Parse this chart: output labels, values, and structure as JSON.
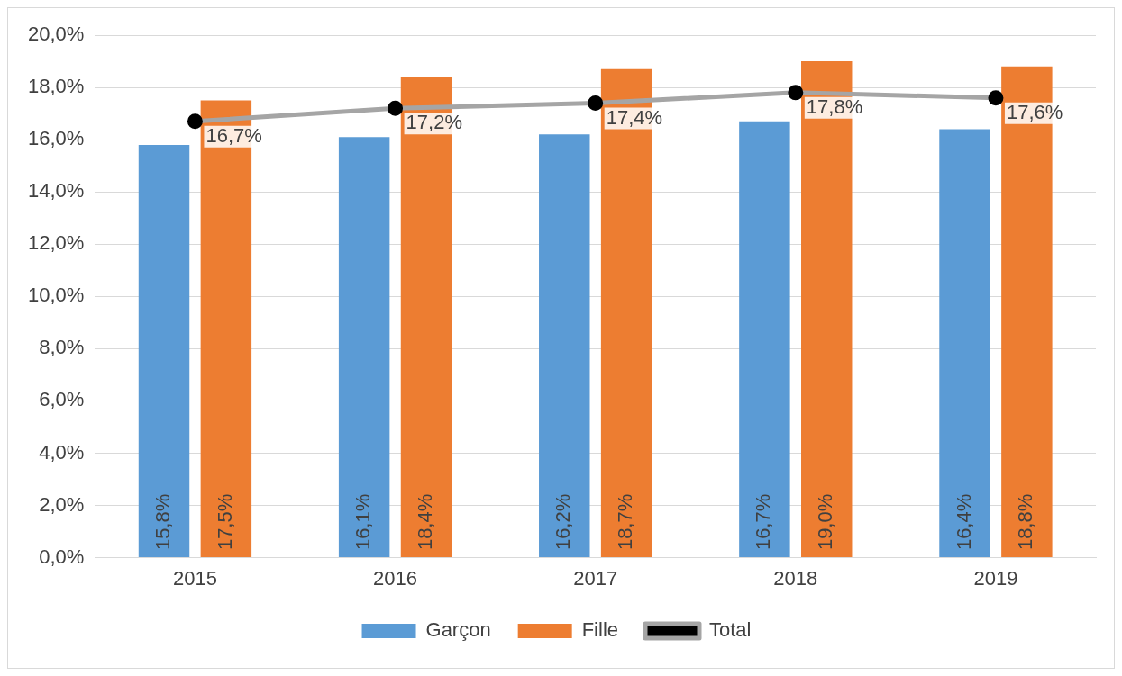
{
  "chart_data": {
    "type": "bar",
    "categories": [
      "2015",
      "2016",
      "2017",
      "2018",
      "2019"
    ],
    "series": [
      {
        "name": "Garçon",
        "color": "#5b9bd5",
        "values": [
          15.8,
          16.1,
          16.2,
          16.7,
          16.4
        ],
        "value_labels": [
          "15,8%",
          "16,1%",
          "16,2%",
          "16,7%",
          "16,4%"
        ]
      },
      {
        "name": "Fille",
        "color": "#ed7d31",
        "values": [
          17.5,
          18.4,
          18.7,
          19.0,
          18.8
        ],
        "value_labels": [
          "17,5%",
          "18,4%",
          "18,7%",
          "19,0%",
          "18,8%"
        ]
      },
      {
        "name": "Total",
        "type": "line",
        "color": "#a5a5a5",
        "values": [
          16.7,
          17.2,
          17.4,
          17.8,
          17.6
        ],
        "value_labels": [
          "16,7%",
          "17,2%",
          "17,4%",
          "17,8%",
          "17,6%"
        ]
      }
    ],
    "ylim": [
      0,
      20
    ],
    "yticks": [
      {
        "value": 0,
        "label": "0,0%"
      },
      {
        "value": 2,
        "label": "2,0%"
      },
      {
        "value": 4,
        "label": "4,0%"
      },
      {
        "value": 6,
        "label": "6,0%"
      },
      {
        "value": 8,
        "label": "8,0%"
      },
      {
        "value": 10,
        "label": "10,0%"
      },
      {
        "value": 12,
        "label": "12,0%"
      },
      {
        "value": 14,
        "label": "14,0%"
      },
      {
        "value": 16,
        "label": "16,0%"
      },
      {
        "value": 18,
        "label": "18,0%"
      },
      {
        "value": 20,
        "label": "20,0%"
      }
    ],
    "grid": "y",
    "legend": "bottom",
    "marker": "circle",
    "line_style": "solid"
  }
}
